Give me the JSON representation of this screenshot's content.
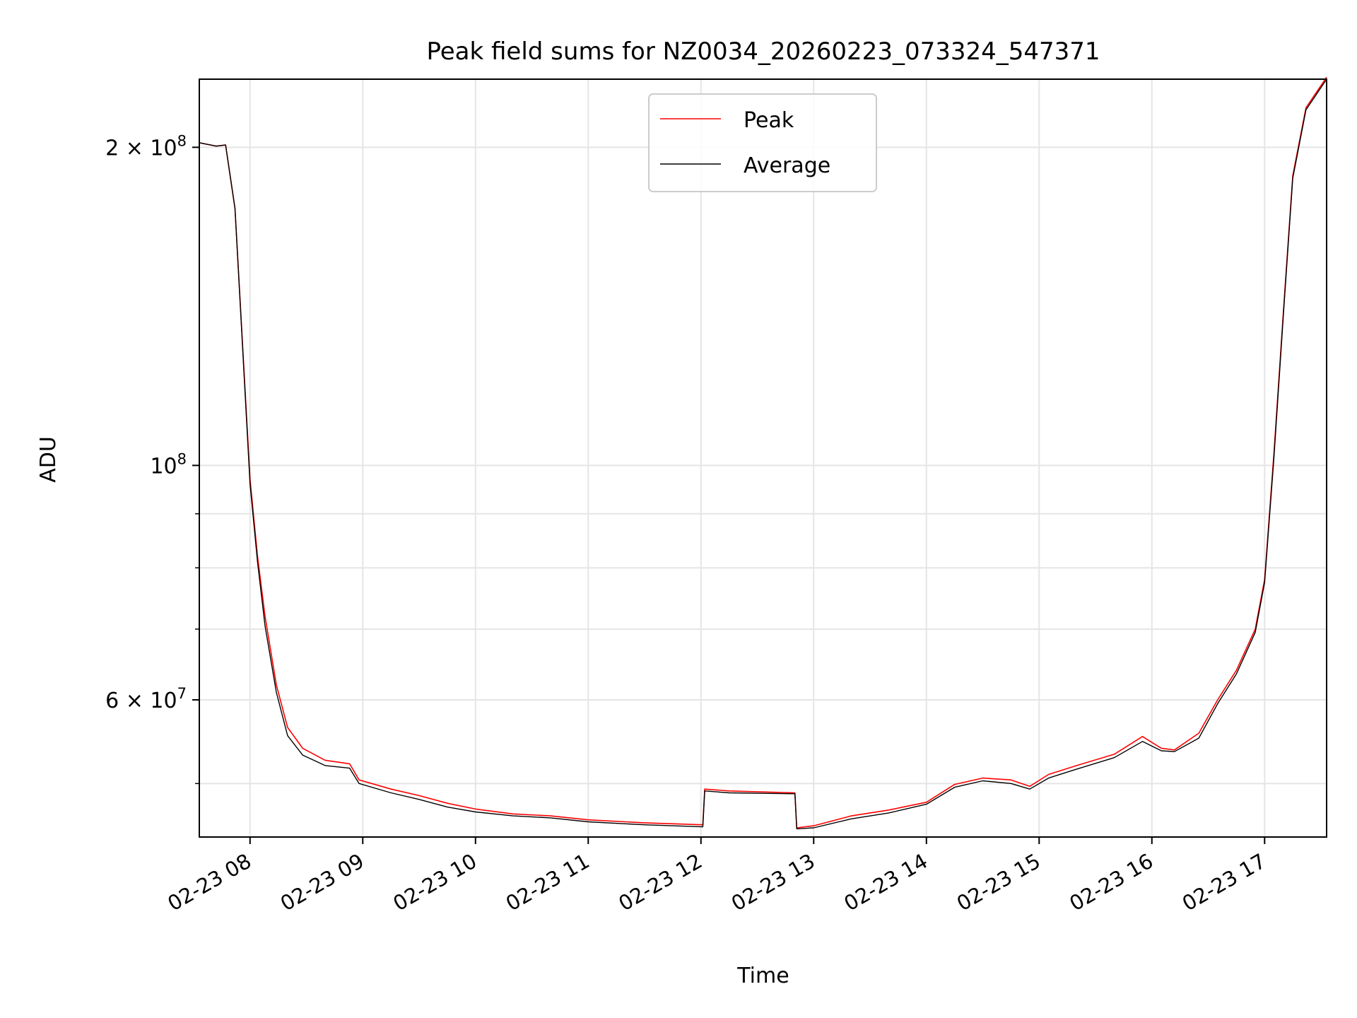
{
  "chart_data": {
    "type": "line",
    "title": "Peak field sums for NZ0034_20260223_073324_547371",
    "xlabel": "Time",
    "ylabel": "ADU",
    "x_is_time": true,
    "xlim": [
      "2026-02-23 07:33",
      "2026-02-23 17:33"
    ],
    "y_scale": "log",
    "ylim": [
      44500000,
      232000000
    ],
    "grid": true,
    "legend_position": "upper center",
    "x_ticks": [
      {
        "value": "2026-02-23 08:00",
        "label": "02-23 08"
      },
      {
        "value": "2026-02-23 09:00",
        "label": "02-23 09"
      },
      {
        "value": "2026-02-23 10:00",
        "label": "02-23 10"
      },
      {
        "value": "2026-02-23 11:00",
        "label": "02-23 11"
      },
      {
        "value": "2026-02-23 12:00",
        "label": "02-23 12"
      },
      {
        "value": "2026-02-23 13:00",
        "label": "02-23 13"
      },
      {
        "value": "2026-02-23 14:00",
        "label": "02-23 14"
      },
      {
        "value": "2026-02-23 15:00",
        "label": "02-23 15"
      },
      {
        "value": "2026-02-23 16:00",
        "label": "02-23 16"
      },
      {
        "value": "2026-02-23 17:00",
        "label": "02-23 17"
      }
    ],
    "y_ticks": [
      {
        "value": 200000000,
        "base": "2 × 10",
        "exp": "8"
      },
      {
        "value": 100000000,
        "base": "10",
        "exp": "8"
      },
      {
        "value": 60000000,
        "base": "6 × 10",
        "exp": "7"
      }
    ],
    "y_minor_ticks": [
      50000000,
      70000000,
      80000000,
      90000000
    ],
    "series": [
      {
        "name": "Peak",
        "color": "#ff0000",
        "points": [
          [
            "2026-02-23 07:33",
            202000000
          ],
          [
            "2026-02-23 07:42",
            200500000
          ],
          [
            "2026-02-23 07:47",
            201000000
          ],
          [
            "2026-02-23 07:52",
            175000000
          ],
          [
            "2026-02-23 08:00",
            97000000
          ],
          [
            "2026-02-23 08:04",
            82000000
          ],
          [
            "2026-02-23 08:08",
            72000000
          ],
          [
            "2026-02-23 08:14",
            62000000
          ],
          [
            "2026-02-23 08:20",
            56500000
          ],
          [
            "2026-02-23 08:28",
            54000000
          ],
          [
            "2026-02-23 08:40",
            52600000
          ],
          [
            "2026-02-23 08:53",
            52200000
          ],
          [
            "2026-02-23 08:58",
            50400000
          ],
          [
            "2026-02-23 09:15",
            49400000
          ],
          [
            "2026-02-23 09:30",
            48700000
          ],
          [
            "2026-02-23 09:45",
            47900000
          ],
          [
            "2026-02-23 10:00",
            47300000
          ],
          [
            "2026-02-23 10:20",
            46800000
          ],
          [
            "2026-02-23 10:40",
            46600000
          ],
          [
            "2026-02-23 11:00",
            46200000
          ],
          [
            "2026-02-23 11:30",
            45900000
          ],
          [
            "2026-02-23 12:01",
            45700000
          ],
          [
            "2026-02-23 12:02",
            49400000
          ],
          [
            "2026-02-23 12:15",
            49200000
          ],
          [
            "2026-02-23 12:50",
            49000000
          ],
          [
            "2026-02-23 12:51",
            45400000
          ],
          [
            "2026-02-23 13:00",
            45600000
          ],
          [
            "2026-02-23 13:20",
            46600000
          ],
          [
            "2026-02-23 13:40",
            47200000
          ],
          [
            "2026-02-23 14:00",
            48000000
          ],
          [
            "2026-02-23 14:15",
            49900000
          ],
          [
            "2026-02-23 14:30",
            50600000
          ],
          [
            "2026-02-23 14:45",
            50400000
          ],
          [
            "2026-02-23 14:55",
            49700000
          ],
          [
            "2026-02-23 15:05",
            51000000
          ],
          [
            "2026-02-23 15:20",
            52000000
          ],
          [
            "2026-02-23 15:40",
            53300000
          ],
          [
            "2026-02-23 15:55",
            55400000
          ],
          [
            "2026-02-23 16:05",
            54000000
          ],
          [
            "2026-02-23 16:12",
            53800000
          ],
          [
            "2026-02-23 16:25",
            55800000
          ],
          [
            "2026-02-23 16:35",
            60000000
          ],
          [
            "2026-02-23 16:45",
            64000000
          ],
          [
            "2026-02-23 16:55",
            70000000
          ],
          [
            "2026-02-23 17:00",
            78000000
          ],
          [
            "2026-02-23 17:05",
            103000000
          ],
          [
            "2026-02-23 17:10",
            140000000
          ],
          [
            "2026-02-23 17:15",
            188000000
          ],
          [
            "2026-02-23 17:22",
            218000000
          ],
          [
            "2026-02-23 17:33",
            233000000
          ]
        ]
      },
      {
        "name": "Average",
        "color": "#000000",
        "points": [
          [
            "2026-02-23 07:33",
            202000000
          ],
          [
            "2026-02-23 07:42",
            200500000
          ],
          [
            "2026-02-23 07:47",
            201000000
          ],
          [
            "2026-02-23 07:52",
            175000000
          ],
          [
            "2026-02-23 08:00",
            96000000
          ],
          [
            "2026-02-23 08:04",
            81000000
          ],
          [
            "2026-02-23 08:08",
            70500000
          ],
          [
            "2026-02-23 08:14",
            61000000
          ],
          [
            "2026-02-23 08:20",
            55500000
          ],
          [
            "2026-02-23 08:28",
            53200000
          ],
          [
            "2026-02-23 08:40",
            52000000
          ],
          [
            "2026-02-23 08:53",
            51700000
          ],
          [
            "2026-02-23 08:58",
            50000000
          ],
          [
            "2026-02-23 09:15",
            49000000
          ],
          [
            "2026-02-23 09:30",
            48300000
          ],
          [
            "2026-02-23 09:45",
            47500000
          ],
          [
            "2026-02-23 10:00",
            47000000
          ],
          [
            "2026-02-23 10:20",
            46600000
          ],
          [
            "2026-02-23 10:40",
            46400000
          ],
          [
            "2026-02-23 11:00",
            46000000
          ],
          [
            "2026-02-23 11:30",
            45700000
          ],
          [
            "2026-02-23 12:01",
            45500000
          ],
          [
            "2026-02-23 12:02",
            49200000
          ],
          [
            "2026-02-23 12:15",
            49000000
          ],
          [
            "2026-02-23 12:50",
            48900000
          ],
          [
            "2026-02-23 12:51",
            45300000
          ],
          [
            "2026-02-23 13:00",
            45400000
          ],
          [
            "2026-02-23 13:20",
            46300000
          ],
          [
            "2026-02-23 13:40",
            46900000
          ],
          [
            "2026-02-23 14:00",
            47800000
          ],
          [
            "2026-02-23 14:15",
            49600000
          ],
          [
            "2026-02-23 14:30",
            50300000
          ],
          [
            "2026-02-23 14:45",
            50000000
          ],
          [
            "2026-02-23 14:55",
            49400000
          ],
          [
            "2026-02-23 15:05",
            50600000
          ],
          [
            "2026-02-23 15:20",
            51600000
          ],
          [
            "2026-02-23 15:40",
            52900000
          ],
          [
            "2026-02-23 15:55",
            54800000
          ],
          [
            "2026-02-23 16:05",
            53700000
          ],
          [
            "2026-02-23 16:12",
            53600000
          ],
          [
            "2026-02-23 16:25",
            55200000
          ],
          [
            "2026-02-23 16:35",
            59500000
          ],
          [
            "2026-02-23 16:45",
            63500000
          ],
          [
            "2026-02-23 16:55",
            69500000
          ],
          [
            "2026-02-23 17:00",
            77500000
          ],
          [
            "2026-02-23 17:05",
            102000000
          ],
          [
            "2026-02-23 17:10",
            139000000
          ],
          [
            "2026-02-23 17:15",
            187000000
          ],
          [
            "2026-02-23 17:22",
            217000000
          ],
          [
            "2026-02-23 17:33",
            232000000
          ]
        ]
      }
    ]
  }
}
